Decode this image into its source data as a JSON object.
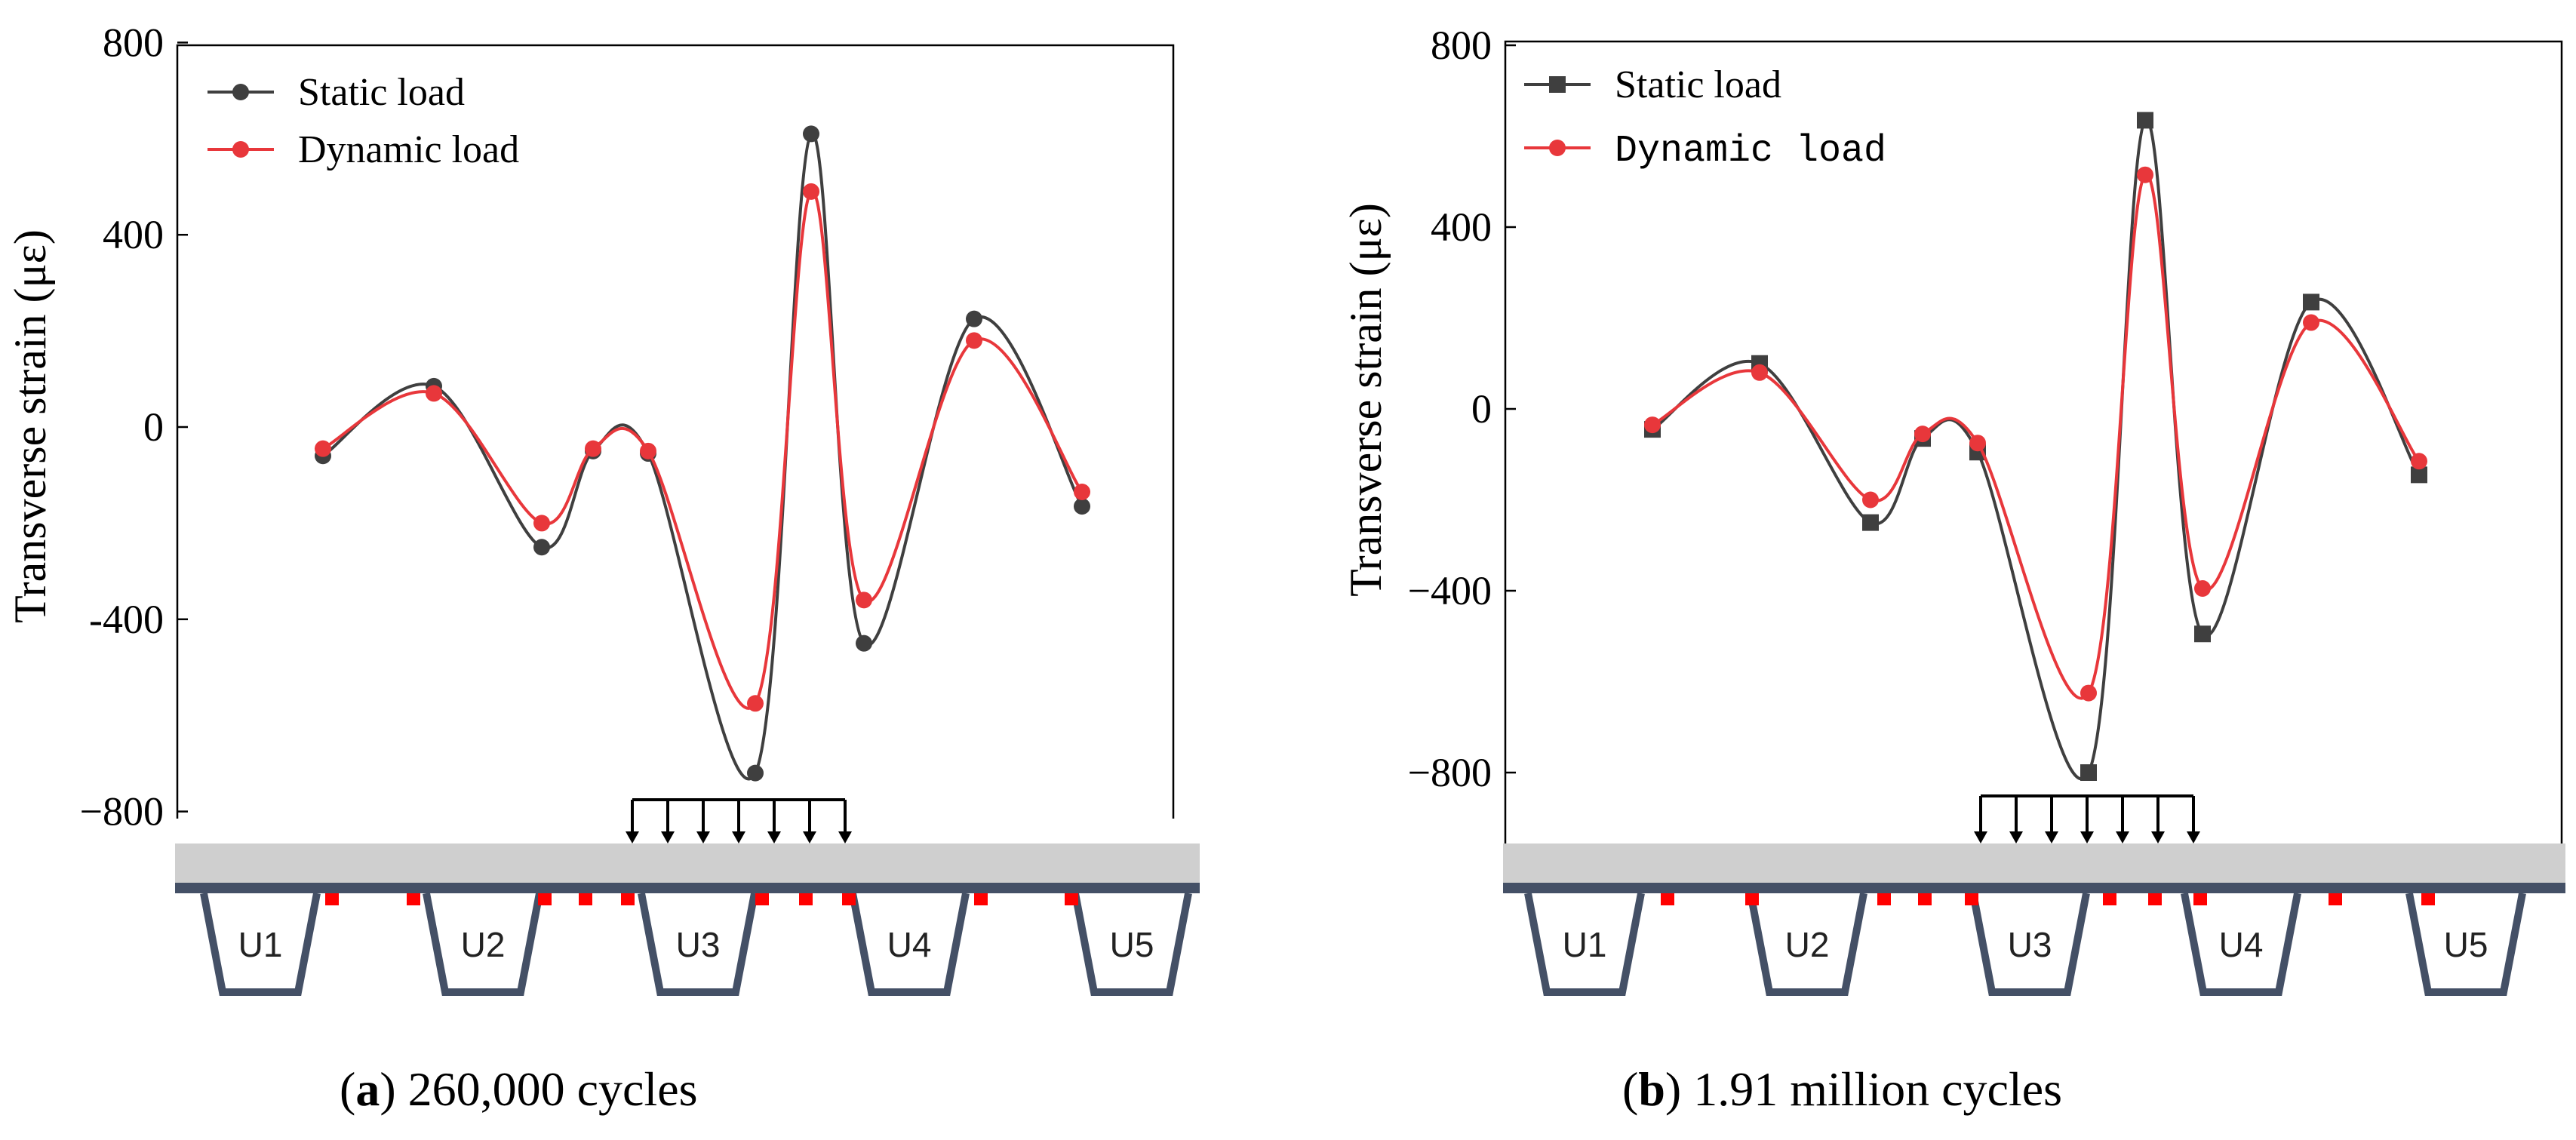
{
  "colors": {
    "static": "#3f3f3f",
    "dynamic": "#e8373b",
    "gauge": "#ff0000",
    "deck": "#cfcfcf",
    "rib": "#445066"
  },
  "chart_data": [
    {
      "type": "line",
      "caption_label": "a",
      "caption_text": " 260,000 cycles",
      "ylabel": "Transverse strain (με)",
      "ylim": [
        -800,
        800
      ],
      "xlim": [
        0,
        10
      ],
      "yticks": [
        800,
        400,
        0,
        -400,
        -800
      ],
      "ytick_labels": [
        "800",
        "400",
        "0",
        "-400",
        "−800"
      ],
      "legend_position": "top-left",
      "series": [
        {
          "name": "Static load",
          "marker": "circle",
          "x": [
            0.8,
            2.2,
            3.6,
            4.3,
            4.9,
            6.0,
            6.6,
            7.4,
            8.8,
            10.3
          ],
          "values": [
            -60,
            85,
            -250,
            -50,
            -55,
            -720,
            610,
            -450,
            225,
            -165
          ]
        },
        {
          "name": "Dynamic load",
          "marker": "circle",
          "x": [
            0.8,
            2.2,
            3.6,
            4.3,
            4.9,
            6.0,
            6.6,
            7.4,
            8.8,
            10.3
          ],
          "values": [
            -45,
            70,
            -200,
            -45,
            -50,
            -575,
            490,
            -360,
            180,
            -135
          ]
        }
      ],
      "ribs": [
        "U1",
        "U2",
        "U3",
        "U4",
        "U5"
      ]
    },
    {
      "type": "line",
      "caption_label": "b",
      "caption_text": " 1.91 million cycles",
      "ylabel": "Transverse strain (με)",
      "ylim": [
        -1000,
        800
      ],
      "xlim": [
        0,
        10
      ],
      "yticks": [
        800,
        400,
        0,
        -400,
        -800
      ],
      "ytick_labels": [
        "800",
        "400",
        "0",
        "−400",
        "−800"
      ],
      "legend_position": "top-left",
      "series": [
        {
          "name": "Static load",
          "marker": "square",
          "x": [
            0.8,
            2.2,
            3.6,
            4.3,
            4.9,
            6.0,
            6.6,
            7.4,
            8.8,
            10.3
          ],
          "values": [
            -45,
            100,
            -250,
            -65,
            -95,
            -800,
            635,
            -495,
            235,
            -145
          ]
        },
        {
          "name": "Dynamic load",
          "marker": "circle",
          "x": [
            0.8,
            2.2,
            3.6,
            4.3,
            4.9,
            6.0,
            6.6,
            7.4,
            8.8,
            10.3
          ],
          "values": [
            -35,
            80,
            -200,
            -55,
            -75,
            -625,
            515,
            -395,
            190,
            -115
          ]
        }
      ],
      "ribs": [
        "U1",
        "U2",
        "U3",
        "U4",
        "U5"
      ]
    }
  ]
}
